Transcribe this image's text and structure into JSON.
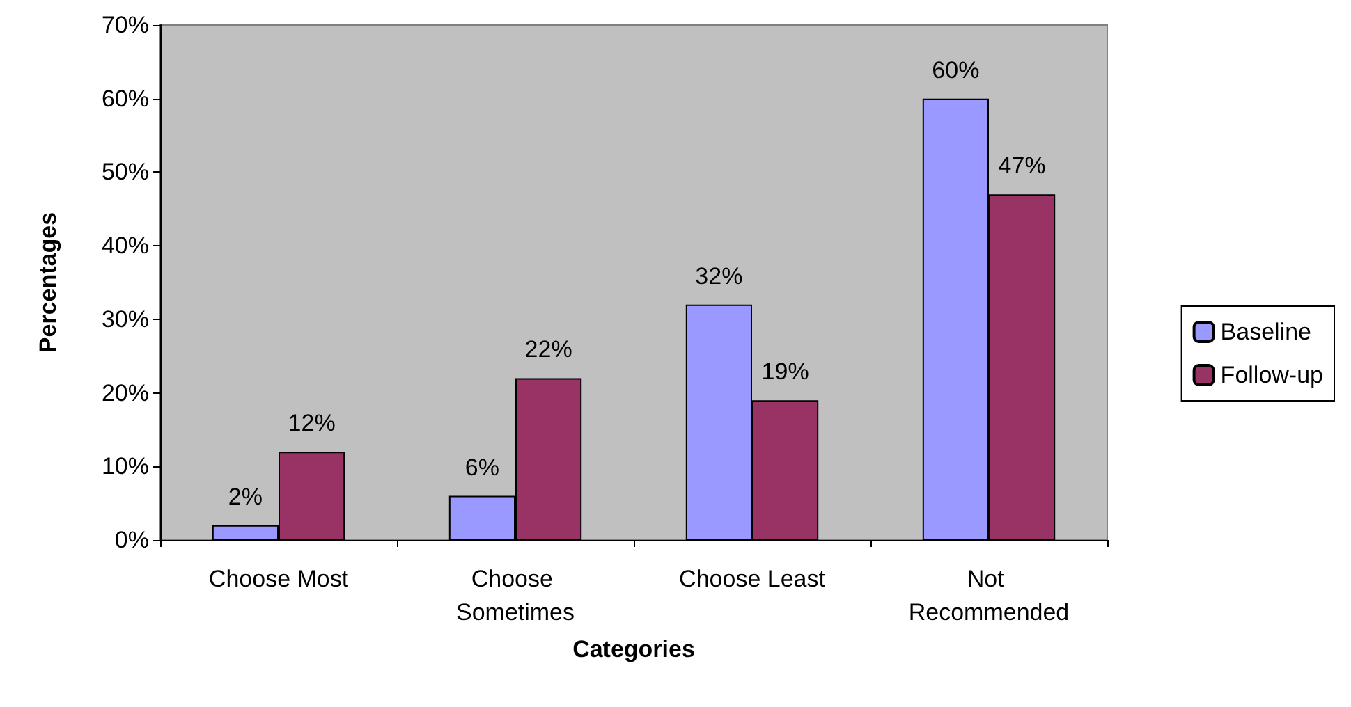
{
  "chart_data": {
    "type": "bar",
    "xlabel": "Categories",
    "ylabel": "Percentages",
    "categories": [
      "Choose Most",
      "Choose Sometimes",
      "Choose Least",
      "Not Recommended"
    ],
    "series": [
      {
        "name": "Baseline",
        "color": "#9999ff",
        "values": [
          2,
          6,
          32,
          60
        ],
        "value_labels": [
          "2%",
          "6%",
          "32%",
          "60%"
        ]
      },
      {
        "name": "Follow-up",
        "color": "#993366",
        "values": [
          12,
          22,
          19,
          47
        ],
        "value_labels": [
          "12%",
          "22%",
          "19%",
          "47%"
        ]
      }
    ],
    "ylim": [
      0,
      70
    ],
    "yticks": [
      {
        "value": 0,
        "label": "0%"
      },
      {
        "value": 10,
        "label": "10%"
      },
      {
        "value": 20,
        "label": "20%"
      },
      {
        "value": 30,
        "label": "30%"
      },
      {
        "value": 40,
        "label": "40%"
      },
      {
        "value": 50,
        "label": "50%"
      },
      {
        "value": 60,
        "label": "60%"
      },
      {
        "value": 70,
        "label": "70%"
      }
    ],
    "grid": false,
    "legend": "right"
  }
}
